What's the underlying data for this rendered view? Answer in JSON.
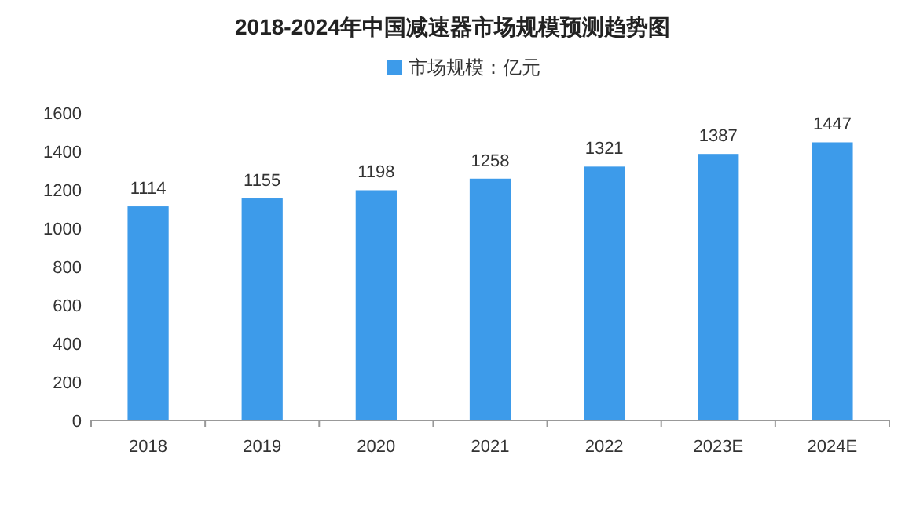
{
  "chart_data": {
    "type": "bar",
    "title": "2018-2024年中国减速器市场规模预测趋势图",
    "categories": [
      "2018",
      "2019",
      "2020",
      "2021",
      "2022",
      "2023E",
      "2024E"
    ],
    "series": [
      {
        "name": "市场规模：亿元",
        "color": "#3d9bea",
        "values": [
          1114,
          1155,
          1198,
          1258,
          1321,
          1387,
          1447
        ]
      }
    ],
    "ylim": [
      0,
      1600
    ],
    "yticks": [
      0,
      200,
      400,
      600,
      800,
      1000,
      1200,
      1400,
      1600
    ],
    "data_labels": true,
    "legend": "top",
    "grid": false
  }
}
